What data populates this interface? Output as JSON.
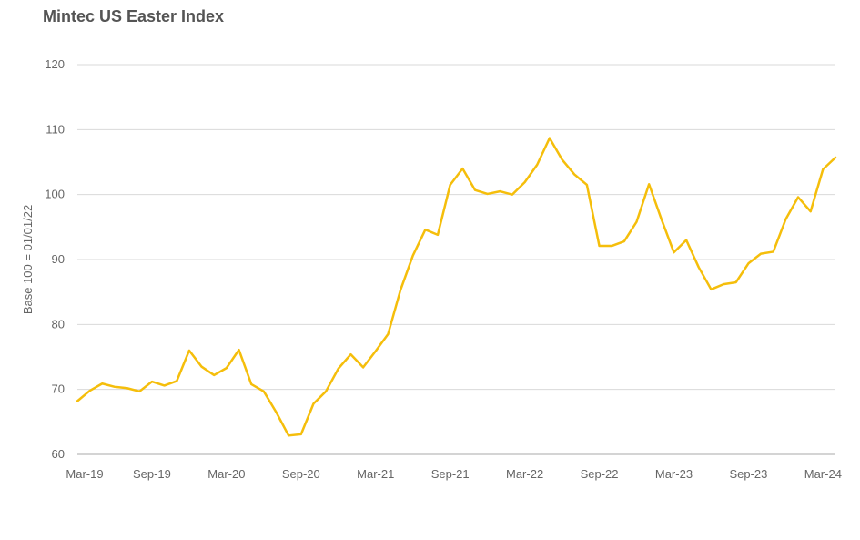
{
  "chart_data": {
    "type": "line",
    "title": "Mintec US Easter Index",
    "ylabel": "Base 100 = 01/01/22",
    "xlabel": "",
    "ylim": [
      60,
      120
    ],
    "yticks": [
      60,
      70,
      80,
      90,
      100,
      110,
      120
    ],
    "x_tick_labels": [
      "Mar-19",
      "Sep-19",
      "Mar-20",
      "Sep-20",
      "Mar-21",
      "Sep-21",
      "Mar-22",
      "Sep-22",
      "Mar-23",
      "Sep-23",
      "Mar-24"
    ],
    "grid": true,
    "legend": "none",
    "line_color": "#F5BE0B",
    "x": [
      "Mar-19",
      "Apr-19",
      "May-19",
      "Jun-19",
      "Jul-19",
      "Aug-19",
      "Sep-19",
      "Oct-19",
      "Nov-19",
      "Dec-19",
      "Jan-20",
      "Feb-20",
      "Mar-20",
      "Apr-20",
      "May-20",
      "Jun-20",
      "Jul-20",
      "Aug-20",
      "Sep-20",
      "Oct-20",
      "Nov-20",
      "Dec-20",
      "Jan-21",
      "Feb-21",
      "Mar-21",
      "Apr-21",
      "May-21",
      "Jun-21",
      "Jul-21",
      "Aug-21",
      "Sep-21",
      "Oct-21",
      "Nov-21",
      "Dec-21",
      "Jan-22",
      "Feb-22",
      "Mar-22",
      "Apr-22",
      "May-22",
      "Jun-22",
      "Jul-22",
      "Aug-22",
      "Sep-22",
      "Oct-22",
      "Nov-22",
      "Dec-22",
      "Jan-23",
      "Feb-23",
      "Mar-23",
      "Apr-23",
      "May-23",
      "Jun-23",
      "Jul-23",
      "Aug-23",
      "Sep-23",
      "Oct-23",
      "Nov-23",
      "Dec-23",
      "Jan-24",
      "Feb-24",
      "Mar-24",
      "Apr-24"
    ],
    "values": [
      68.2,
      69.8,
      70.9,
      70.4,
      70.2,
      69.7,
      71.2,
      70.6,
      71.3,
      76.0,
      73.5,
      72.2,
      73.3,
      76.1,
      70.8,
      69.7,
      66.5,
      62.9,
      63.1,
      67.8,
      69.7,
      73.2,
      75.4,
      73.4,
      75.9,
      78.5,
      85.3,
      90.6,
      94.6,
      93.8,
      101.5,
      104.0,
      100.7,
      100.1,
      100.5,
      100.0,
      101.9,
      104.6,
      108.7,
      105.4,
      103.1,
      101.5,
      92.1,
      92.1,
      92.8,
      95.8,
      101.6,
      96.2,
      91.1,
      93.0,
      88.8,
      85.4,
      86.2,
      86.5,
      89.4,
      90.9,
      91.2,
      96.2,
      99.6,
      97.4,
      103.9,
      105.7
    ]
  }
}
